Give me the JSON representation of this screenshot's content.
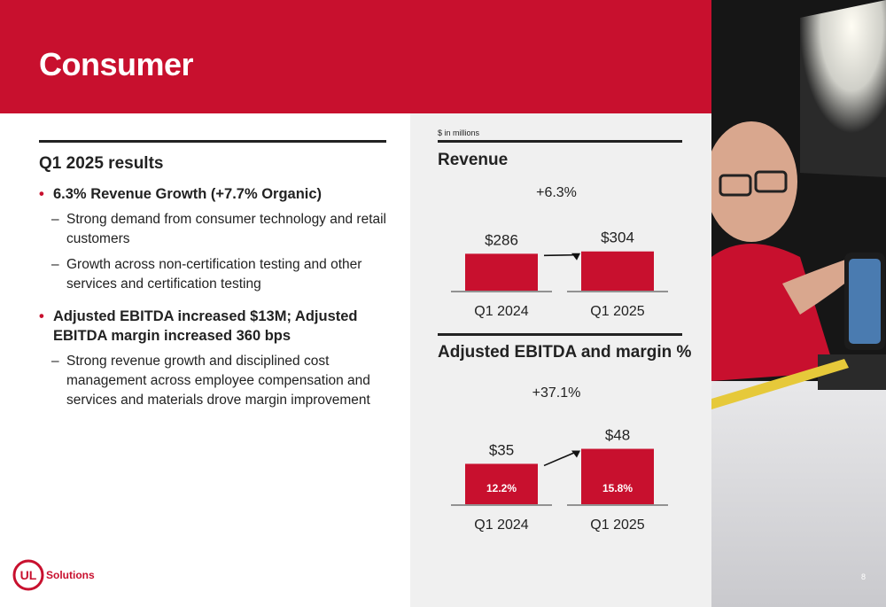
{
  "slide": {
    "title": "Consumer",
    "page_number": "8"
  },
  "left": {
    "section_title": "Q1 2025 results",
    "bullets": [
      {
        "text": "6.3% Revenue Growth (+7.7% Organic)",
        "subs": [
          "Strong demand from consumer technology and retail customers",
          "Growth across non-certification testing and other services and certification testing"
        ]
      },
      {
        "text": "Adjusted EBITDA increased $13M; Adjusted EBITDA margin increased 360 bps",
        "subs": [
          "Strong revenue growth and disciplined cost management across employee compensation and services and materials drove margin improvement"
        ]
      }
    ]
  },
  "units_note": "$ in millions",
  "logo": {
    "mark": "UL",
    "text": "Solutions"
  },
  "colors": {
    "brand_red": "#c8102e",
    "panel_grey": "#f0f0f0"
  },
  "chart_data": [
    {
      "type": "bar",
      "title": "Revenue",
      "categories": [
        "Q1 2024",
        "Q1 2025"
      ],
      "values": [
        286,
        304
      ],
      "value_labels": [
        "$286",
        "$304"
      ],
      "growth_label": "+6.3%",
      "color": "#c8102e"
    },
    {
      "type": "bar",
      "title": "Adjusted EBITDA and margin %",
      "categories": [
        "Q1 2024",
        "Q1 2025"
      ],
      "values": [
        35,
        48
      ],
      "value_labels": [
        "$35",
        "$48"
      ],
      "margins": [
        "12.2%",
        "15.8%"
      ],
      "growth_label": "+37.1%",
      "color": "#c8102e"
    }
  ]
}
